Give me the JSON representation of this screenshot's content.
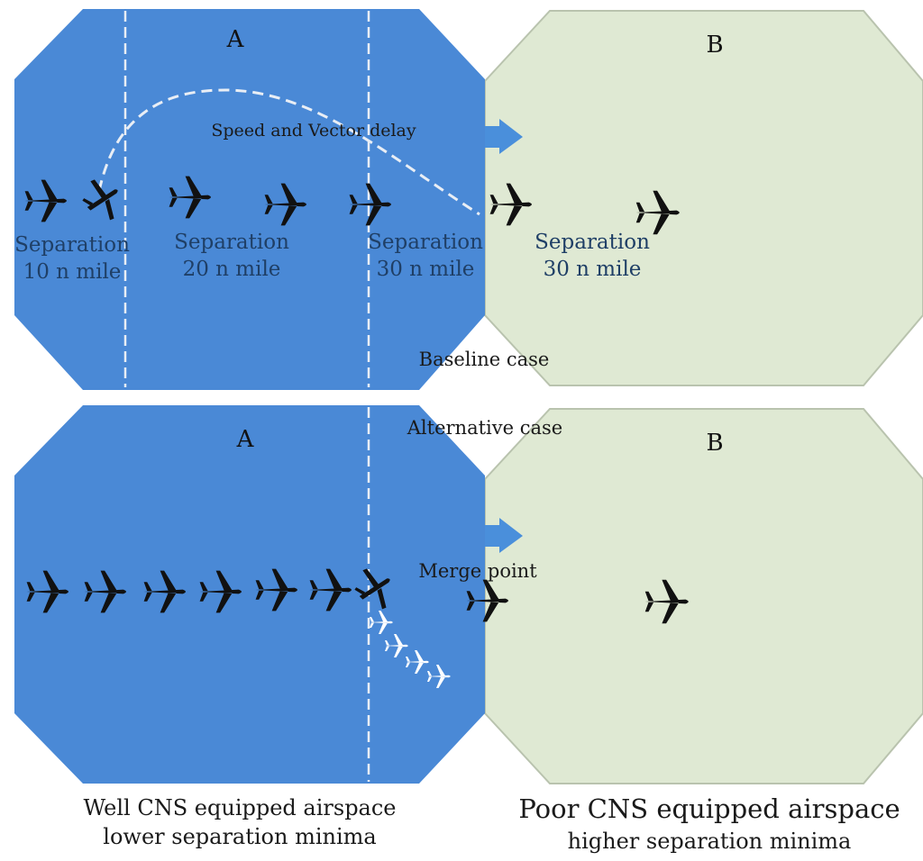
{
  "baseline": {
    "zone_a_label": "A",
    "zone_b_label": "B",
    "delay_label": "Speed and Vector delay",
    "case_label": "Baseline case",
    "separations": [
      {
        "line1": "Separation",
        "line2": "10 n mile"
      },
      {
        "line1": "Separation",
        "line2": "20 n mile"
      },
      {
        "line1": "Separation",
        "line2": "30 n mile"
      },
      {
        "line1": "Separation",
        "line2": "30 n mile"
      }
    ]
  },
  "alternative": {
    "zone_a_label": "A",
    "zone_b_label": "B",
    "case_label": "Alternative case",
    "merge_label": "Merge point"
  },
  "footer": {
    "left_line1": "Well CNS equipped airspace",
    "left_line2": "lower separation minima",
    "right_line1": "Poor CNS equipped airspace",
    "right_line2": "higher separation minima"
  },
  "colors": {
    "well_equipped": "#4a89d6",
    "poor_equipped": "#dfe9d3",
    "poor_equipped_border": "#b9c3ae",
    "arrow": "#4a8fdb",
    "aircraft": "#111111",
    "dashed": "#e9eef5"
  }
}
